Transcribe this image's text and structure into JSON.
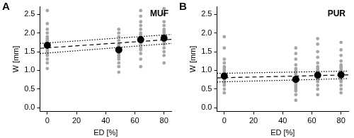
{
  "chart_data": [
    {
      "type": "scatter",
      "panel_label": "A",
      "title": "MUF",
      "xlabel": "ED [%]",
      "ylabel": "W [mm]",
      "xlim": [
        -5,
        85
      ],
      "xticks": [
        0,
        20,
        40,
        60,
        80
      ],
      "ylim": [
        -0.1,
        2.7
      ],
      "yticks": [
        {
          "value": 0,
          "label": "0.0"
        },
        {
          "value": 0.5,
          "label": "0.5"
        },
        {
          "value": 1,
          "label": "1.0"
        },
        {
          "value": 1.5,
          "label": "1.5"
        },
        {
          "value": 2,
          "label": "2.0"
        },
        {
          "value": 2.5,
          "label": "2.5"
        }
      ],
      "grid": false,
      "legend": false,
      "series": [
        {
          "type": "scatter",
          "marker": "circle",
          "color": "#000000",
          "x": [
            0,
            49,
            64,
            80
          ],
          "values": [
            1.67,
            1.55,
            1.82,
            1.86
          ]
        },
        {
          "type": "line",
          "line_style": "dashed",
          "color": "#000000",
          "x": [
            -5,
            85
          ],
          "values": [
            1.59,
            1.83
          ]
        },
        {
          "type": "line",
          "line_style": "dotted",
          "color": "#000000",
          "x": [
            -5,
            85
          ],
          "values": [
            1.72,
            1.96
          ]
        },
        {
          "type": "line",
          "line_style": "dotted",
          "color": "#000000",
          "x": [
            -5,
            85
          ],
          "values": [
            1.45,
            1.72
          ]
        },
        {
          "type": "scatter",
          "marker": "circle",
          "color": "#a6a6a6",
          "x": [
            0,
            0,
            0,
            0,
            0,
            0,
            0,
            0,
            0,
            0,
            0,
            0,
            0,
            0,
            0,
            0,
            0,
            0,
            49,
            49,
            49,
            49,
            49,
            49,
            49,
            49,
            49,
            49,
            49,
            49,
            49,
            49,
            49,
            49,
            64,
            64,
            64,
            64,
            64,
            64,
            64,
            64,
            64,
            64,
            64,
            64,
            64,
            64,
            64,
            64,
            64,
            80,
            80,
            80,
            80,
            80,
            80,
            80,
            80,
            80,
            80,
            80,
            80,
            80,
            80,
            80,
            80,
            80
          ],
          "values": [
            1.05,
            1.2,
            1.3,
            1.4,
            1.45,
            1.5,
            1.55,
            1.6,
            1.65,
            1.7,
            1.75,
            1.8,
            1.85,
            1.9,
            2.0,
            2.1,
            2.25,
            2.6,
            0.95,
            1.1,
            1.2,
            1.3,
            1.35,
            1.4,
            1.45,
            1.5,
            1.55,
            1.6,
            1.65,
            1.7,
            1.8,
            1.9,
            2.0,
            2.1,
            1.1,
            1.3,
            1.45,
            1.55,
            1.6,
            1.7,
            1.75,
            1.8,
            1.85,
            1.9,
            1.95,
            2.0,
            2.1,
            2.2,
            2.3,
            2.45,
            2.6,
            1.2,
            1.4,
            1.5,
            1.6,
            1.7,
            1.75,
            1.8,
            1.85,
            1.9,
            1.95,
            2.0,
            2.05,
            2.1,
            2.2,
            2.3,
            2.5,
            2.65
          ]
        }
      ]
    },
    {
      "type": "scatter",
      "panel_label": "B",
      "title": "PUR",
      "xlabel": "ED [%]",
      "ylabel": "W [mm]",
      "xlim": [
        -5,
        85
      ],
      "xticks": [
        0,
        20,
        40,
        60,
        80
      ],
      "ylim": [
        -0.1,
        2.7
      ],
      "yticks": [
        {
          "value": 0,
          "label": "0.0"
        },
        {
          "value": 0.5,
          "label": "0.5"
        },
        {
          "value": 1,
          "label": "1.0"
        },
        {
          "value": 1.5,
          "label": "1.5"
        },
        {
          "value": 2,
          "label": "2.0"
        },
        {
          "value": 2.5,
          "label": "2.5"
        }
      ],
      "grid": false,
      "legend": false,
      "series": [
        {
          "type": "scatter",
          "marker": "circle",
          "color": "#000000",
          "x": [
            0,
            49,
            64,
            80
          ],
          "values": [
            0.85,
            0.76,
            0.87,
            0.88
          ]
        },
        {
          "type": "line",
          "line_style": "dashed",
          "color": "#000000",
          "x": [
            -5,
            85
          ],
          "values": [
            0.8,
            0.88
          ]
        },
        {
          "type": "line",
          "line_style": "dotted",
          "color": "#000000",
          "x": [
            -5,
            85
          ],
          "values": [
            0.92,
            0.98
          ]
        },
        {
          "type": "line",
          "line_style": "dotted",
          "color": "#000000",
          "x": [
            -5,
            85
          ],
          "values": [
            0.69,
            0.78
          ]
        },
        {
          "type": "scatter",
          "marker": "circle",
          "color": "#a6a6a6",
          "x": [
            0,
            0,
            0,
            0,
            0,
            0,
            0,
            0,
            0,
            0,
            0,
            0,
            0,
            0,
            0,
            0,
            0,
            49,
            49,
            49,
            49,
            49,
            49,
            49,
            49,
            49,
            49,
            49,
            49,
            49,
            49,
            49,
            49,
            49,
            49,
            49,
            64,
            64,
            64,
            64,
            64,
            64,
            64,
            64,
            64,
            64,
            64,
            64,
            64,
            64,
            64,
            64,
            64,
            80,
            80,
            80,
            80,
            80,
            80,
            80,
            80,
            80,
            80,
            80,
            80,
            80,
            80,
            80,
            80,
            80
          ],
          "values": [
            0.4,
            0.5,
            0.6,
            0.65,
            0.7,
            0.75,
            0.8,
            0.85,
            0.9,
            0.95,
            1.0,
            1.05,
            1.1,
            1.2,
            1.3,
            1.6,
            1.9,
            0.2,
            0.35,
            0.45,
            0.5,
            0.55,
            0.6,
            0.65,
            0.7,
            0.75,
            0.8,
            0.85,
            0.9,
            0.95,
            1.0,
            1.05,
            1.15,
            1.3,
            1.45,
            1.6,
            0.35,
            0.5,
            0.6,
            0.7,
            0.75,
            0.8,
            0.85,
            0.9,
            0.95,
            1.0,
            1.05,
            1.1,
            1.2,
            1.35,
            1.5,
            1.7,
            1.85,
            0.4,
            0.5,
            0.6,
            0.7,
            0.75,
            0.8,
            0.85,
            0.9,
            0.95,
            1.0,
            1.05,
            1.1,
            1.15,
            1.25,
            1.4,
            1.55,
            1.75
          ]
        }
      ]
    }
  ]
}
